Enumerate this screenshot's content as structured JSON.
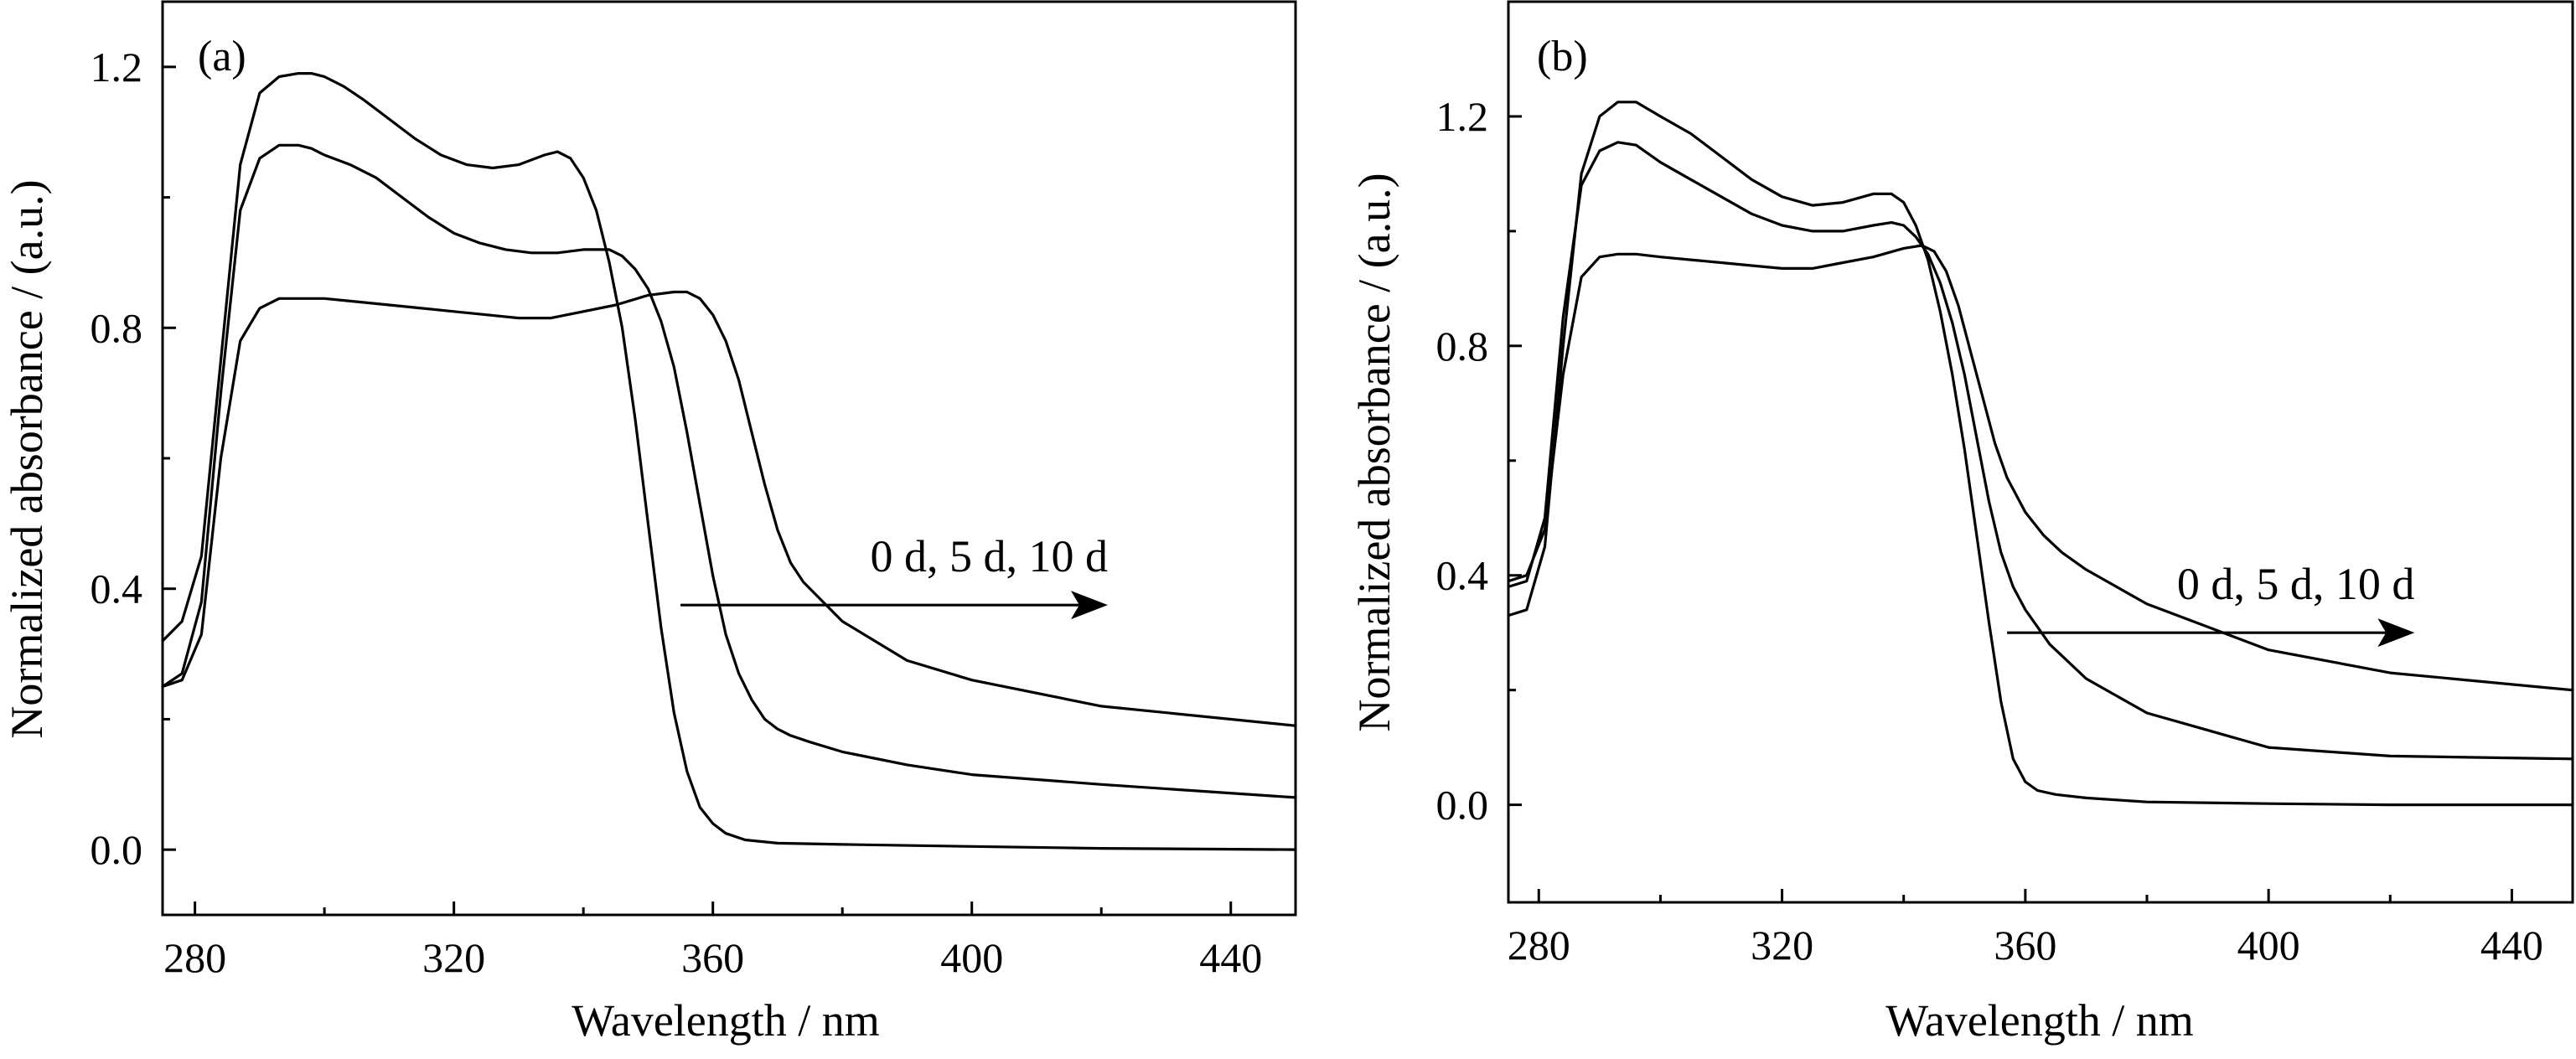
{
  "chart_data": [
    {
      "type": "line",
      "panel_label": "(a)",
      "xlabel": "Wavelength / nm",
      "ylabel": "Normalized absorbance / (a.u.)",
      "xlim": [
        275,
        450
      ],
      "ylim": [
        -0.1,
        1.3
      ],
      "xticks": [
        280,
        320,
        360,
        400,
        440
      ],
      "yticks": [
        0.0,
        0.4,
        0.8,
        1.2
      ],
      "xtick_labels": [
        "280",
        "320",
        "360",
        "400",
        "440"
      ],
      "ytick_labels": [
        "0.0",
        "0.4",
        "0.8",
        "1.2"
      ],
      "grid": false,
      "annotation": {
        "text": "0 d, 5 d, 10 d",
        "arrow_from": [
          355,
          0.375
        ],
        "arrow_to": [
          421,
          0.375
        ]
      },
      "series": [
        {
          "x": [
            275,
            278,
            281,
            284,
            287,
            290,
            293,
            296,
            298,
            300,
            303,
            306,
            310,
            314,
            318,
            322,
            326,
            330,
            334,
            336,
            338,
            340,
            342,
            344,
            346,
            348,
            350,
            352,
            354,
            356,
            358,
            360,
            362,
            365,
            370,
            380,
            400,
            420,
            450
          ],
          "values": [
            0.32,
            0.35,
            0.45,
            0.75,
            1.05,
            1.16,
            1.185,
            1.19,
            1.19,
            1.185,
            1.17,
            1.15,
            1.12,
            1.09,
            1.065,
            1.05,
            1.045,
            1.05,
            1.065,
            1.07,
            1.06,
            1.03,
            0.98,
            0.9,
            0.8,
            0.66,
            0.5,
            0.34,
            0.21,
            0.12,
            0.065,
            0.04,
            0.025,
            0.015,
            0.01,
            0.008,
            0.005,
            0.002,
            0.0
          ]
        },
        {
          "x": [
            275,
            278,
            281,
            284,
            287,
            290,
            293,
            296,
            298,
            300,
            304,
            308,
            312,
            316,
            320,
            324,
            328,
            332,
            336,
            340,
            344,
            346,
            348,
            350,
            352,
            354,
            356,
            358,
            360,
            362,
            364,
            366,
            368,
            370,
            372,
            375,
            380,
            390,
            400,
            420,
            450
          ],
          "values": [
            0.25,
            0.27,
            0.38,
            0.7,
            0.98,
            1.06,
            1.08,
            1.08,
            1.075,
            1.065,
            1.05,
            1.03,
            1.0,
            0.97,
            0.945,
            0.93,
            0.92,
            0.915,
            0.915,
            0.92,
            0.92,
            0.91,
            0.89,
            0.86,
            0.81,
            0.74,
            0.64,
            0.53,
            0.42,
            0.33,
            0.27,
            0.23,
            0.2,
            0.185,
            0.175,
            0.165,
            0.15,
            0.13,
            0.115,
            0.1,
            0.08
          ]
        },
        {
          "x": [
            275,
            278,
            281,
            284,
            287,
            290,
            293,
            296,
            300,
            305,
            310,
            315,
            320,
            325,
            330,
            335,
            340,
            345,
            350,
            354,
            356,
            358,
            360,
            362,
            364,
            366,
            368,
            370,
            372,
            374,
            376,
            380,
            390,
            400,
            420,
            450
          ],
          "values": [
            0.25,
            0.26,
            0.33,
            0.6,
            0.78,
            0.83,
            0.845,
            0.845,
            0.845,
            0.84,
            0.835,
            0.83,
            0.825,
            0.82,
            0.815,
            0.815,
            0.825,
            0.835,
            0.85,
            0.855,
            0.855,
            0.845,
            0.82,
            0.78,
            0.72,
            0.64,
            0.56,
            0.49,
            0.44,
            0.41,
            0.39,
            0.35,
            0.29,
            0.26,
            0.22,
            0.19
          ]
        }
      ]
    },
    {
      "type": "line",
      "panel_label": "(b)",
      "xlabel": "Wavelength / nm",
      "ylabel": "Normalized absorbance / (a.u.)",
      "xlim": [
        275,
        450
      ],
      "ylim": [
        -0.17,
        1.4
      ],
      "xticks": [
        280,
        320,
        360,
        400,
        440
      ],
      "yticks": [
        0.0,
        0.4,
        0.8,
        1.2
      ],
      "xtick_labels": [
        "280",
        "320",
        "360",
        "400",
        "440"
      ],
      "ytick_labels": [
        "0.0",
        "0.4",
        "0.8",
        "1.2"
      ],
      "grid": false,
      "annotation": {
        "text": "0 d, 5 d, 10 d",
        "arrow_from": [
          357,
          0.3
        ],
        "arrow_to": [
          424,
          0.3
        ]
      },
      "series": [
        {
          "x": [
            275,
            278,
            281,
            284,
            287,
            290,
            293,
            296,
            300,
            305,
            310,
            315,
            320,
            325,
            330,
            335,
            338,
            340,
            342,
            344,
            346,
            348,
            350,
            352,
            354,
            356,
            358,
            360,
            362,
            365,
            370,
            380,
            400,
            420,
            450
          ],
          "values": [
            0.33,
            0.34,
            0.45,
            0.8,
            1.1,
            1.2,
            1.225,
            1.225,
            1.2,
            1.17,
            1.13,
            1.09,
            1.06,
            1.045,
            1.05,
            1.065,
            1.065,
            1.05,
            1.01,
            0.95,
            0.86,
            0.75,
            0.62,
            0.47,
            0.32,
            0.18,
            0.08,
            0.04,
            0.025,
            0.018,
            0.012,
            0.005,
            0.002,
            0.0,
            0.0
          ]
        },
        {
          "x": [
            275,
            278,
            281,
            284,
            287,
            290,
            293,
            296,
            300,
            305,
            310,
            315,
            320,
            325,
            330,
            335,
            338,
            340,
            342,
            344,
            346,
            348,
            350,
            352,
            354,
            356,
            358,
            360,
            362,
            364,
            366,
            370,
            375,
            380,
            390,
            400,
            420,
            450
          ],
          "values": [
            0.38,
            0.39,
            0.5,
            0.85,
            1.08,
            1.14,
            1.155,
            1.15,
            1.12,
            1.09,
            1.06,
            1.03,
            1.01,
            1.0,
            1.0,
            1.01,
            1.015,
            1.01,
            0.99,
            0.96,
            0.91,
            0.84,
            0.75,
            0.64,
            0.53,
            0.44,
            0.38,
            0.34,
            0.31,
            0.28,
            0.26,
            0.22,
            0.19,
            0.16,
            0.13,
            0.1,
            0.085,
            0.08
          ]
        },
        {
          "x": [
            275,
            278,
            281,
            284,
            287,
            290,
            293,
            296,
            300,
            305,
            310,
            315,
            320,
            325,
            330,
            335,
            340,
            343,
            345,
            347,
            349,
            351,
            353,
            355,
            357,
            360,
            363,
            366,
            370,
            375,
            380,
            390,
            400,
            420,
            450
          ],
          "values": [
            0.39,
            0.4,
            0.48,
            0.75,
            0.92,
            0.955,
            0.96,
            0.96,
            0.955,
            0.95,
            0.945,
            0.94,
            0.935,
            0.935,
            0.945,
            0.955,
            0.97,
            0.975,
            0.965,
            0.93,
            0.87,
            0.79,
            0.71,
            0.63,
            0.57,
            0.51,
            0.47,
            0.44,
            0.41,
            0.38,
            0.35,
            0.31,
            0.27,
            0.23,
            0.2
          ]
        }
      ]
    }
  ]
}
